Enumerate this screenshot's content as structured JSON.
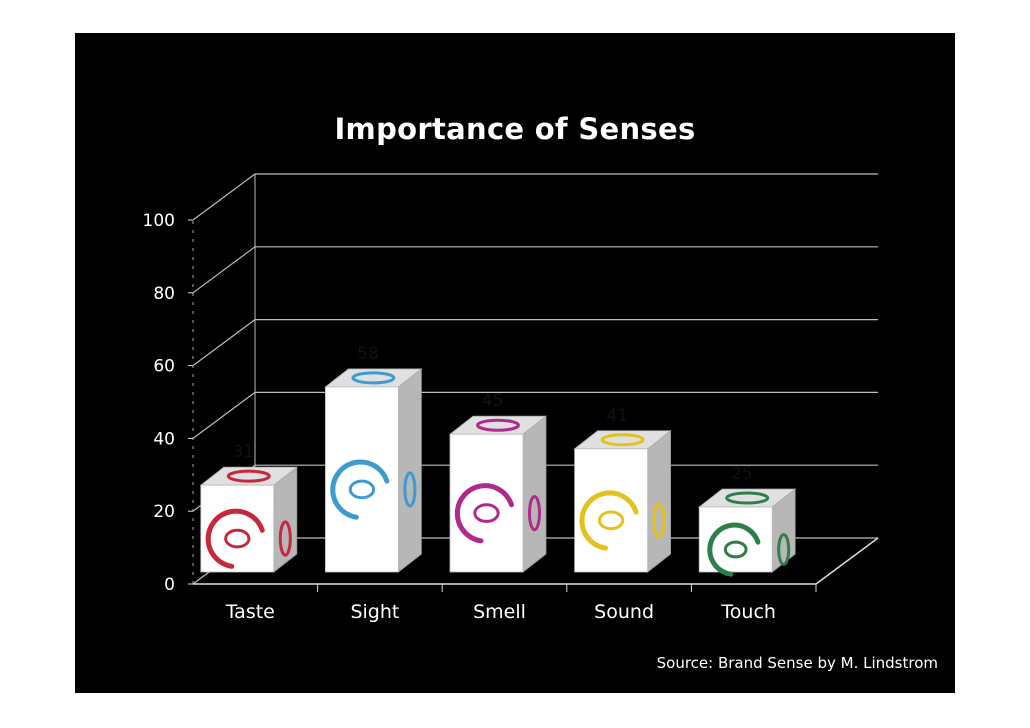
{
  "chart_data": {
    "type": "bar",
    "title": "Importance of Senses",
    "categories": [
      "Taste",
      "Sight",
      "Smell",
      "Sound",
      "Touch"
    ],
    "values": [
      31,
      58,
      45,
      41,
      25
    ],
    "ylim": [
      0,
      100
    ],
    "yticks": [
      "0",
      "20",
      "40",
      "60",
      "80",
      "100"
    ],
    "xlabel": "",
    "ylabel": "",
    "grid": true,
    "three_d": true,
    "bar_icons": [
      "mouth-icon",
      "eye-icon",
      "nose-icon",
      "ear-icon",
      "hand-icon"
    ],
    "bar_colors": [
      "#c8283c",
      "#3d9bd0",
      "#b02a8c",
      "#e4c21c",
      "#2f7d4a"
    ]
  },
  "source": "Source: Brand Sense by M. Lindstrom"
}
